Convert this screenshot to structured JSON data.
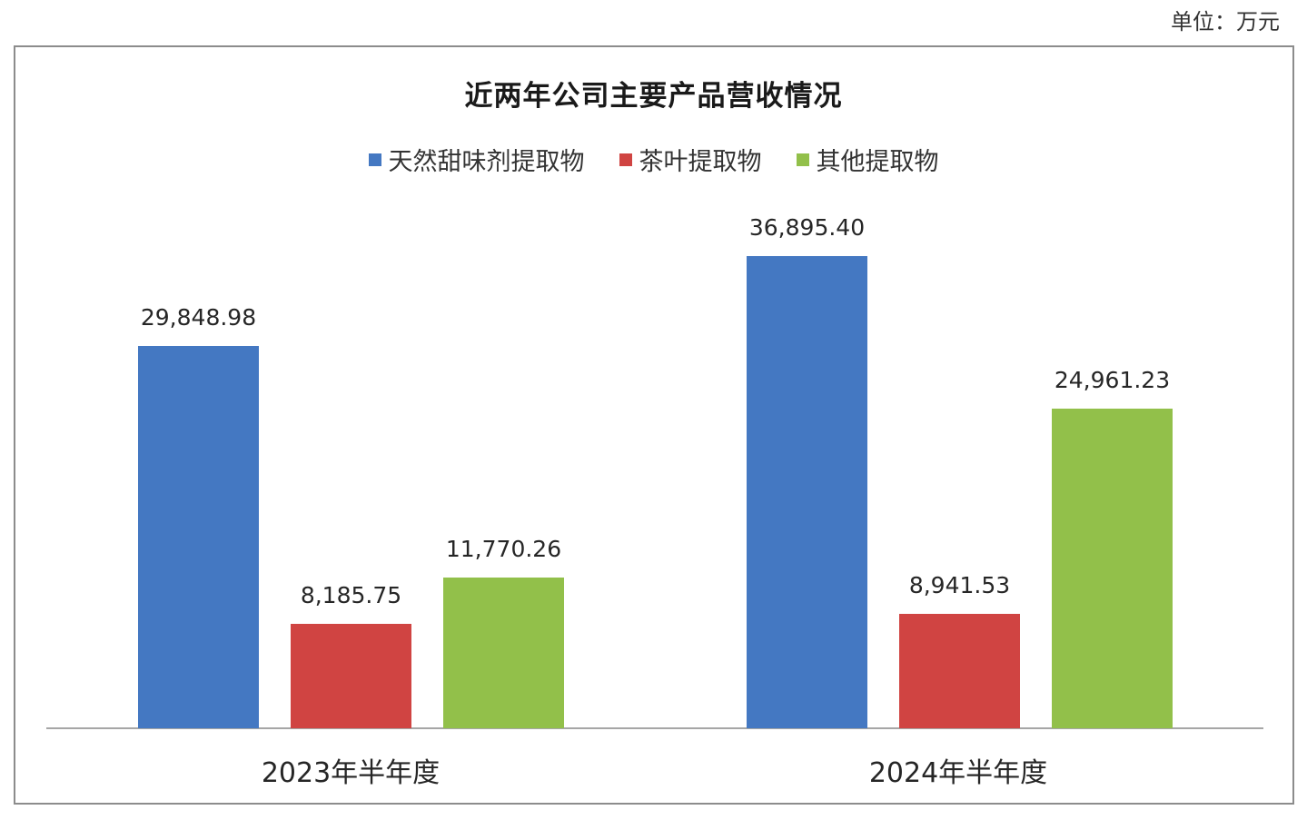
{
  "unit_label": "单位：万元",
  "chart_data": {
    "type": "bar",
    "title": "近两年公司主要产品营收情况",
    "unit": "万元",
    "categories": [
      "2023年半年度",
      "2024年半年度"
    ],
    "series": [
      {
        "name": "天然甜味剂提取物",
        "color": "#4478c2",
        "values": [
          29848.98,
          36895.4
        ],
        "labels": [
          "29,848.98",
          "36,895.40"
        ]
      },
      {
        "name": "茶叶提取物",
        "color": "#d04442",
        "values": [
          8185.75,
          8941.53
        ],
        "labels": [
          "8,185.75",
          "8,941.53"
        ]
      },
      {
        "name": "其他提取物",
        "color": "#92c04a",
        "values": [
          11770.26,
          24961.23
        ],
        "labels": [
          "11,770.26",
          "24,961.23"
        ]
      }
    ],
    "xlabel": "",
    "ylabel": "",
    "ylim": [
      0,
      40000
    ],
    "grid": false,
    "legend_position": "top",
    "data_labels": true
  }
}
